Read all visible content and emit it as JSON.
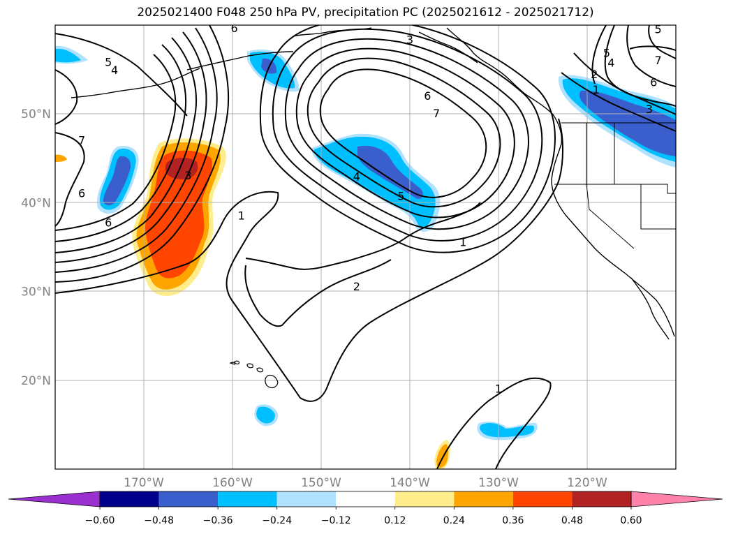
{
  "title": "2025021400 F048 250 hPa PV, precipitation PC (2025021612 - 2025021712)",
  "map": {
    "projection": "plate-carree",
    "lon_range": [
      -180,
      -110
    ],
    "lat_range": [
      10,
      60
    ],
    "gridlines": true,
    "lat_ticks": [
      {
        "value": 20,
        "label": "20°N"
      },
      {
        "value": 30,
        "label": "30°N"
      },
      {
        "value": 40,
        "label": "40°N"
      },
      {
        "value": 50,
        "label": "50°N"
      }
    ],
    "lon_ticks": [
      {
        "value": -170,
        "label": "170°W"
      },
      {
        "value": -160,
        "label": "160°W"
      },
      {
        "value": -150,
        "label": "150°W"
      },
      {
        "value": -140,
        "label": "140°W"
      },
      {
        "value": -130,
        "label": "130°W"
      },
      {
        "value": -120,
        "label": "120°W"
      }
    ],
    "contour_labels": [
      {
        "text": "6",
        "lon": -159.8,
        "lat": 59.6
      },
      {
        "text": "5",
        "lon": -174.0,
        "lat": 55.8
      },
      {
        "text": "4",
        "lon": -173.3,
        "lat": 54.9
      },
      {
        "text": "3",
        "lon": -140.0,
        "lat": 58.3
      },
      {
        "text": "6",
        "lon": -138.0,
        "lat": 52.0
      },
      {
        "text": "7",
        "lon": -137.0,
        "lat": 50.0
      },
      {
        "text": "4",
        "lon": -146.0,
        "lat": 42.9
      },
      {
        "text": "5",
        "lon": -141.0,
        "lat": 40.7
      },
      {
        "text": "1",
        "lon": -159.0,
        "lat": 38.5
      },
      {
        "text": "3",
        "lon": -165.0,
        "lat": 43.0
      },
      {
        "text": "6",
        "lon": -177.0,
        "lat": 41.0
      },
      {
        "text": "6",
        "lon": -174.0,
        "lat": 37.7
      },
      {
        "text": "7",
        "lon": -177.0,
        "lat": 47.0
      },
      {
        "text": "1",
        "lon": -134.0,
        "lat": 35.5
      },
      {
        "text": "2",
        "lon": -146.0,
        "lat": 30.5
      },
      {
        "text": "1",
        "lon": -130.0,
        "lat": 19.0
      },
      {
        "text": "5",
        "lon": -112.0,
        "lat": 59.5
      },
      {
        "text": "5",
        "lon": -117.8,
        "lat": 56.8
      },
      {
        "text": "4",
        "lon": -117.3,
        "lat": 55.7
      },
      {
        "text": "2",
        "lon": -119.2,
        "lat": 54.4
      },
      {
        "text": "1",
        "lon": -119.0,
        "lat": 52.7
      },
      {
        "text": "6",
        "lon": -112.5,
        "lat": 53.5
      },
      {
        "text": "7",
        "lon": -112.0,
        "lat": 56.0
      },
      {
        "text": "3",
        "lon": -113.0,
        "lat": 50.5
      }
    ]
  },
  "colorbar": {
    "extend": "both",
    "ticks": [
      "−0.60",
      "−0.48",
      "−0.36",
      "−0.24",
      "−0.12",
      "0.12",
      "0.24",
      "0.36",
      "0.48",
      "0.60"
    ],
    "colors": [
      "#9b30d0",
      "#00008b",
      "#3a5fcd",
      "#00bfff",
      "#b0e2ff",
      "#ffffff",
      "#ffec8b",
      "#ffa500",
      "#ff4500",
      "#b22222",
      "#ff82ab"
    ]
  },
  "legend_colors": {
    "strong_negative": "#3a5fcd",
    "moderate_negative": "#00bfff",
    "weak_negative": "#b0e2ff",
    "weak_positive": "#ffec8b",
    "moderate_positive": "#ffa500",
    "strong_positive": "#ff4500",
    "very_strong_positive": "#b22222"
  }
}
